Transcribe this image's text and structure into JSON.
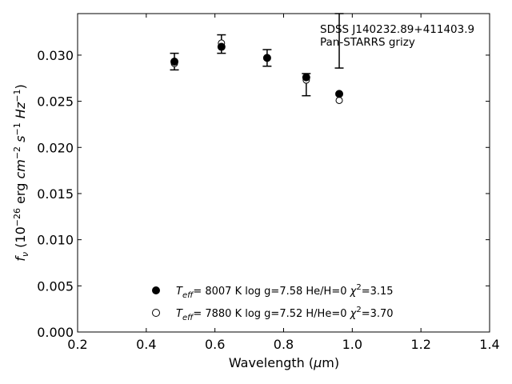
{
  "chart_data": {
    "type": "scatter",
    "title": "",
    "xlabel": "Wavelength (μm)",
    "ylabel": "f_ν (10^-26 erg cm^-2 s^-1 Hz^-1)",
    "xlim": [
      0.2,
      1.4
    ],
    "ylim": [
      0.0,
      0.0345
    ],
    "xticks": [
      0.2,
      0.4,
      0.6,
      0.8,
      1.0,
      1.2,
      1.4
    ],
    "xtick_labels": [
      "0.2",
      "0.4",
      "0.6",
      "0.8",
      "1.0",
      "1.2",
      "1.4"
    ],
    "yticks": [
      0.0,
      0.005,
      0.01,
      0.015,
      0.02,
      0.025,
      0.03
    ],
    "ytick_labels": [
      "0.000",
      "0.005",
      "0.010",
      "0.015",
      "0.020",
      "0.025",
      "0.030"
    ],
    "grid": false,
    "legend_position": "lower-center",
    "annotations": [
      "SDSS J140232.89+411403.9",
      "Pan-STARRS grizy"
    ],
    "observed": {
      "x": [
        0.482,
        0.619,
        0.752,
        0.866,
        0.962
      ],
      "y": [
        0.0293,
        0.0312,
        0.0297,
        0.0268,
        0.0346
      ],
      "yerr": [
        0.0009,
        0.001,
        0.0009,
        0.0012,
        0.006
      ]
    },
    "series": [
      {
        "name": "Teff= 8007 K log g=7.58 He/H=0 χ2=3.15",
        "marker": "filled-circle",
        "x": [
          0.482,
          0.619,
          0.752,
          0.866,
          0.962
        ],
        "y": [
          0.0293,
          0.0309,
          0.0297,
          0.0276,
          0.0258
        ]
      },
      {
        "name": "Teff= 7880 K log g=7.52 H/He=0 χ2=3.70",
        "marker": "open-circle",
        "x": [
          0.482,
          0.619,
          0.752,
          0.866,
          0.962
        ],
        "y": [
          0.0291,
          0.0313,
          0.0297,
          0.0273,
          0.0251
        ]
      }
    ]
  }
}
